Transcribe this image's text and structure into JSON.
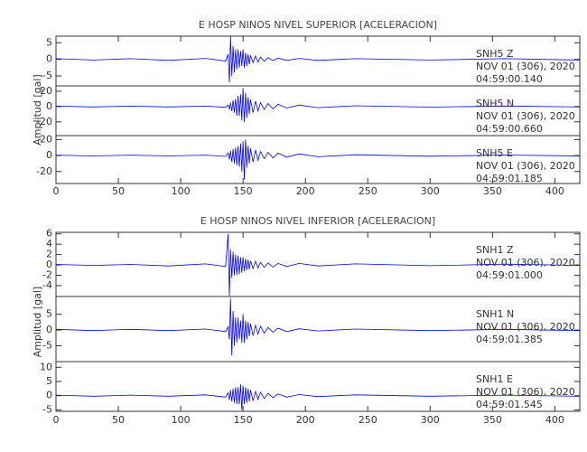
{
  "chart_data": [
    {
      "type": "line",
      "title": "E HOSP NINOS NIVEL SUPERIOR [ACELERACION]",
      "ylabel": "Amplitud [gal]",
      "color": "#0000ff",
      "xlim": [
        0,
        420
      ],
      "xticks": [
        0,
        50,
        100,
        150,
        200,
        250,
        300,
        350,
        400
      ],
      "x": [
        0,
        30,
        60,
        90,
        120,
        136,
        138,
        139,
        140,
        141,
        142,
        143,
        144,
        145,
        146,
        147,
        148,
        149,
        150,
        151,
        152,
        153,
        154,
        155,
        156,
        158,
        160,
        162,
        164,
        167,
        170,
        174,
        178,
        185,
        195,
        210,
        240,
        300,
        360,
        420
      ],
      "panels": [
        {
          "labels": [
            "SNH5   Z",
            "NOV 01 (306), 2020",
            "04:59:00.140"
          ],
          "ylim": [
            -8,
            7
          ],
          "yticks": [
            5,
            0,
            -5
          ],
          "values": [
            0.2,
            -0.2,
            0.2,
            -0.3,
            0.3,
            -0.5,
            1.5,
            -7,
            7,
            -5,
            4,
            -4,
            3,
            -3,
            3,
            -2.5,
            2.5,
            -2,
            3,
            -2.5,
            2,
            -2,
            1.5,
            -1.5,
            1.2,
            -1,
            1,
            -0.8,
            0.7,
            -0.6,
            0.5,
            -0.4,
            0.4,
            -0.3,
            0.3,
            -0.3,
            0.2,
            -0.2,
            0.2,
            -0.2
          ]
        },
        {
          "labels": [
            "SNH5   N",
            "NOV 01 (306), 2020",
            "04:59:00.660"
          ],
          "ylim": [
            -38,
            27
          ],
          "yticks": [
            20,
            0,
            -20
          ],
          "values": [
            0.5,
            -0.5,
            0.5,
            -0.5,
            0.5,
            -1,
            2,
            -4,
            5,
            -6,
            8,
            -8,
            10,
            -12,
            14,
            -12,
            16,
            -18,
            24,
            -20,
            18,
            -15,
            12,
            -10,
            9,
            -8,
            7,
            -6,
            5,
            -4,
            4,
            -3,
            3,
            -2,
            2,
            -1.5,
            1,
            -0.8,
            0.7,
            -0.5
          ]
        },
        {
          "labels": [
            "SNH5   E",
            "NOV 01 (306), 2020",
            "04:59:01.185"
          ],
          "ylim": [
            -35,
            25
          ],
          "yticks": [
            20,
            0,
            -20
          ],
          "values": [
            0.5,
            -0.5,
            0.5,
            -0.5,
            0.5,
            -1,
            3,
            -5,
            6,
            -8,
            8,
            -10,
            10,
            -12,
            12,
            -14,
            15,
            -20,
            18,
            -30,
            20,
            -15,
            12,
            -10,
            9,
            -8,
            7,
            -6,
            5,
            -4,
            4,
            -3,
            3,
            -2,
            2,
            -1.5,
            1,
            -0.8,
            0.7,
            -0.5
          ]
        }
      ]
    },
    {
      "type": "line",
      "title": "E HOSP NINOS NIVEL INFERIOR [ACELERACION]",
      "ylabel": "Amplitud [gal]",
      "color": "#0000ff",
      "xlim": [
        0,
        420
      ],
      "xticks": [
        0,
        50,
        100,
        150,
        200,
        250,
        300,
        350,
        400
      ],
      "x": [
        0,
        30,
        60,
        90,
        120,
        136,
        138,
        139,
        140,
        141,
        142,
        143,
        144,
        145,
        146,
        147,
        148,
        149,
        150,
        151,
        152,
        153,
        154,
        155,
        156,
        158,
        160,
        162,
        164,
        167,
        170,
        174,
        178,
        185,
        195,
        210,
        240,
        300,
        360,
        420
      ],
      "panels": [
        {
          "labels": [
            "SNH1   Z",
            "NOV 01 (306), 2020",
            "04:59:01.000"
          ],
          "ylim": [
            -6.1,
            6.3
          ],
          "yticks": [
            6,
            4,
            2,
            0,
            -2,
            -4
          ],
          "values": [
            0.1,
            -0.1,
            0.1,
            -0.2,
            0.2,
            -0.3,
            6,
            -6,
            3,
            -2.5,
            2.5,
            -2,
            2,
            -2,
            1.8,
            -1.8,
            1.5,
            -1.5,
            1.5,
            -1.2,
            1.2,
            -1,
            1,
            -0.9,
            0.8,
            -0.7,
            0.7,
            -0.6,
            0.5,
            -0.5,
            0.4,
            -0.4,
            0.3,
            -0.3,
            0.3,
            -0.2,
            0.2,
            -0.15,
            0.15,
            -0.1
          ]
        },
        {
          "labels": [
            "SNH1   N",
            "NOV 01 (306), 2020",
            "04:59:01.385"
          ],
          "ylim": [
            -10,
            10.6
          ],
          "yticks": [
            5,
            0,
            -5
          ],
          "values": [
            0.2,
            -0.2,
            0.2,
            -0.2,
            0.3,
            -0.5,
            1,
            -3,
            10,
            -8,
            6,
            -5,
            4,
            -4,
            4,
            -3,
            3,
            -4,
            5,
            -4,
            3,
            -3,
            2.5,
            -2,
            2,
            -1.8,
            1.5,
            -1.3,
            1.2,
            -1,
            0.8,
            -0.7,
            0.6,
            -0.5,
            0.4,
            -0.3,
            0.3,
            -0.2,
            0.2,
            -0.2
          ]
        },
        {
          "labels": [
            "SNH1   E",
            "NOV 01 (306), 2020",
            "04:59:01.545"
          ],
          "ylim": [
            -5.5,
            12
          ],
          "yticks": [
            10,
            5,
            0,
            -5
          ],
          "values": [
            0.2,
            -0.2,
            0.2,
            -0.2,
            0.3,
            -0.5,
            1,
            -1.5,
            2,
            -2,
            2.5,
            -2.5,
            3,
            -3,
            3,
            -3,
            4,
            -5,
            3.5,
            -3,
            3,
            -2.5,
            2.5,
            -2,
            2,
            -1.8,
            1.5,
            -1.3,
            1.2,
            -1,
            0.8,
            -0.7,
            0.6,
            -0.5,
            0.4,
            -0.3,
            0.3,
            -0.2,
            0.2,
            -0.2
          ]
        }
      ]
    }
  ]
}
